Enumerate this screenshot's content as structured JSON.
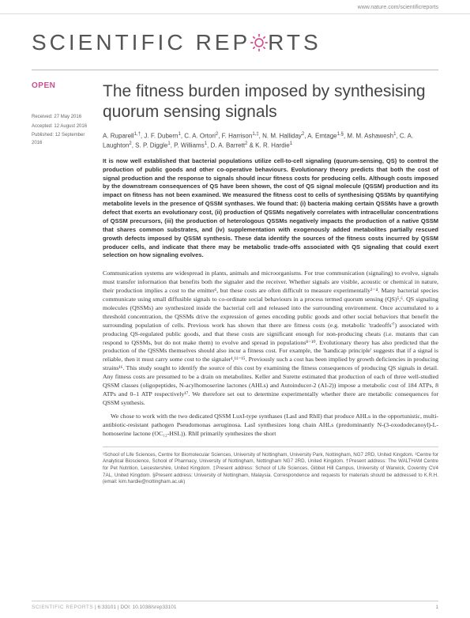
{
  "url": "www.nature.com/scientificreports",
  "journal_logo": {
    "text_before": "SCIENTIFIC",
    "text_after_1": "REP",
    "text_after_2": "RTS",
    "gear_color": "#d04d8f"
  },
  "open_label": "OPEN",
  "dates": {
    "received_label": "Received:",
    "received": "27 May 2016",
    "accepted_label": "Accepted:",
    "accepted": "12 August 2016",
    "published_label": "Published:",
    "published": "12 September 2016"
  },
  "title": "The fitness burden imposed by synthesising quorum sensing signals",
  "authors_html": "A. Ruparell<sup>1,†</sup>, J. F. Dubern<sup>1</sup>, C. A. Ortori<sup>2</sup>, F. Harrison<sup>1,‡</sup>, N. M. Halliday<sup>2</sup>, A. Emtage<sup>1,§</sup>, M. M. Ashawesh<sup>1</sup>, C. A. Laughton<sup>2</sup>, S. P. Diggle<sup>1</sup>, P. Williams<sup>1</sup>, D. A. Barrett<sup>2</sup> & K. R. Hardie<sup>1</sup>",
  "abstract": "It is now well established that bacterial populations utilize cell-to-cell signaling (quorum-sensing, QS) to control the production of public goods and other co-operative behaviours. Evolutionary theory predicts that both the cost of signal production and the response to signals should incur fitness costs for producing cells. Although costs imposed by the downstream consequences of QS have been shown, the cost of QS signal molecule (QSSM) production and its impact on fitness has not been examined. We measured the fitness cost to cells of synthesising QSSMs by quantifying metabolite levels in the presence of QSSM synthases. We found that: (i) bacteria making certain QSSMs have a growth defect that exerts an evolutionary cost, (ii) production of QSSMs negatively correlates with intracellular concentrations of QSSM precursors, (iii) the production of heterologous QSSMs negatively impacts the production of a native QSSM that shares common substrates, and (iv) supplementation with exogenously added metabolites partially rescued growth defects imposed by QSSM synthesis. These data identify the sources of the fitness costs incurred by QSSM producer cells, and indicate that there may be metabolic trade-offs associated with QS signaling that could exert selection on how signaling evolves.",
  "body_p1": "Communication systems are widespread in plants, animals and microorganisms. For true communication (signaling) to evolve, signals must transfer information that benefits both the signaler and the receiver. Whether signals are visible, acoustic or chemical in nature, their production implies a cost to the emitter¹, but these costs are often difficult to measure experimentally²⁻⁴. Many bacterial species communicate using small diffusible signals to co-ordinate social behaviours in a process termed quorum sensing (QS)⁵,⁶. QS signaling molecules (QSSMs) are synthesized inside the bacterial cell and released into the surrounding environment. Once accumulated to a threshold concentration, the QSSMs drive the expression of genes encoding public goods and other social behaviors that benefit the surrounding population of cells. Previous work has shown that there are fitness costs (e.g. metabolic 'tradeoffs'⁷) associated with producing QS-regulated public goods, and that these costs are significant enough for non-producing cheats (i.e. mutants that can respond to QSSMs, but do not make them) to evolve and spread in populations⁸⁻¹⁰. Evolutionary theory has also predicted that the production of the QSSMs themselves should also incur a fitness cost. For example, the 'handicap principle' suggests that if a signal is reliable, then it must carry some cost to the signaler¹,¹¹⁻¹⁵. Previously such a cost has been implied by growth deficiencies in producing strains¹⁶. This study sought to identify the source of this cost by examining the fitness consequences of producing QS signals in detail. Any fitness costs are presumed to be a drain on metabolites. Keller and Surette estimated that production of each of three well-studied QSSM classes (oligopeptides, N-acylhomoserine lactones (AHLs) and Autoinducer-2 (AI-2)) impose a metabolic cost of 184 ATPs, 8 ATPs and 0–1 ATP respectively¹⁷. We therefore set out to determine experimentally whether there are metabolic consequences for QSSM synthesis.",
  "body_p2": "We chose to work with the two dedicated QSSM LuxI-type synthases (LasI and RhlI) that produce AHLs in the opportunistic, multi-antibiotic-resistant pathogen Pseudomonas aeruginosa. LasI synthesizes long chain AHLs (predominantly N-(3-oxododecanoyl)-L-homoserine lactone (OC₁₂-HSL)). RhlI primarily synthesizes the short",
  "affiliations": "¹School of Life Sciences, Centre for Biomolecular Sciences, University of Nottingham, University Park, Nottingham, NG7 2RD, United Kingdom. ²Centre for Analytical Bioscience, School of Pharmacy, University of Nottingham, Nottingham NG7 2RD, United Kingdom. †Present address: The WALTHAM Centre for Pet Nutrition, Leicestershire, United Kingdom. ‡Present address: School of Life Sciences, Gibbet Hill Campus, University of Warwick, Coventry CV4 7AL, United Kingdom. §Present address: University of Nottingham, Malaysia. Correspondence and requests for materials should be addressed to K.R.H. (email: kim.hardie@nottingham.ac.uk)",
  "footer": {
    "journal": "SCIENTIFIC REPORTS",
    "citation": " | 6:33101 | DOI: 10.1038/srep33101",
    "page": "1"
  }
}
